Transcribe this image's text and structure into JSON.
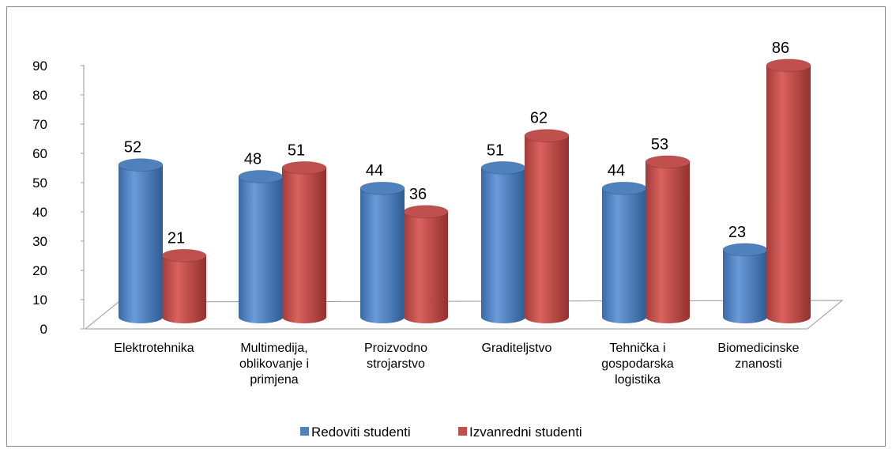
{
  "chart_data": {
    "type": "bar",
    "categories": [
      "Elektrotehnika",
      "Multimedija, oblikovanje i primjena",
      "Proizvodno strojarstvo",
      "Graditeljstvo",
      "Tehnička i gospodarska logistika",
      "Biomedicinske znanosti"
    ],
    "series": [
      {
        "name": "Redoviti studenti",
        "color": "#4f81bd",
        "values": [
          52,
          48,
          44,
          51,
          44,
          23
        ]
      },
      {
        "name": "Izvanredni studenti",
        "color": "#c0504d",
        "values": [
          21,
          51,
          36,
          62,
          53,
          86
        ]
      }
    ],
    "ylim": [
      0,
      90
    ],
    "yticks": [
      0,
      10,
      20,
      30,
      40,
      50,
      60,
      70,
      80,
      90
    ],
    "legend": "bottom"
  }
}
